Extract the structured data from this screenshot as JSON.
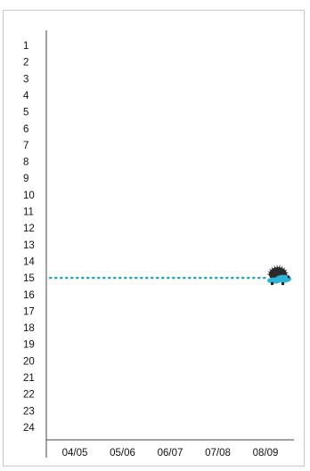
{
  "title": "",
  "chart_data": {
    "type": "line",
    "categories": [
      "04/05",
      "05/06",
      "06/07",
      "07/08",
      "08/09"
    ],
    "y_ticks": [
      "1",
      "2",
      "3",
      "4",
      "5",
      "6",
      "7",
      "8",
      "9",
      "10",
      "11",
      "12",
      "13",
      "14",
      "15",
      "16",
      "17",
      "18",
      "19",
      "20",
      "21",
      "22",
      "23",
      "24"
    ],
    "ylim": [
      1,
      24
    ],
    "y_inverted": true,
    "grid": false,
    "series": [
      {
        "values": [
          15,
          15,
          15,
          15,
          15
        ],
        "color": "#1aa6c8",
        "line_style": "dotted",
        "marker_icon": "hedgehog-icon",
        "marker_at": "08/09"
      }
    ],
    "xlabel": "",
    "ylabel": ""
  }
}
